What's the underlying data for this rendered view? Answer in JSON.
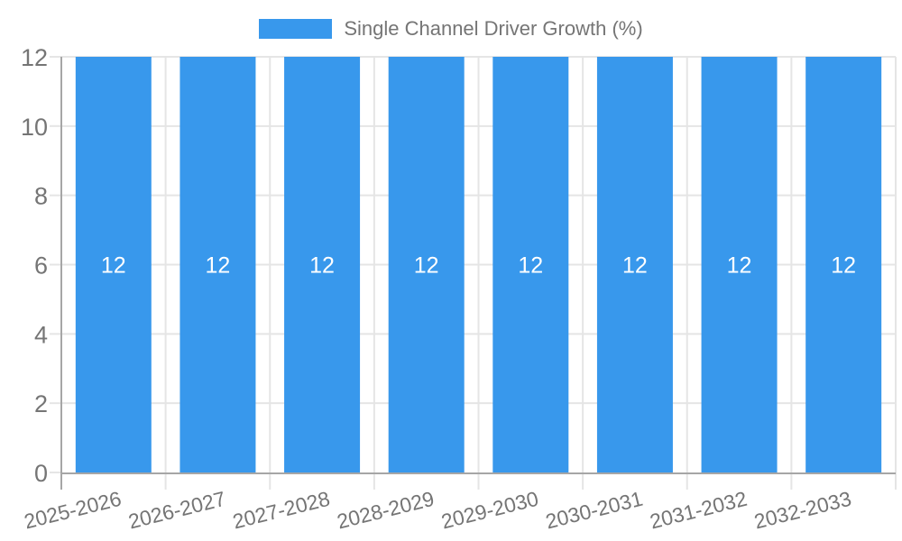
{
  "legend": {
    "label": "Single Channel Driver Growth (%)"
  },
  "chart_data": {
    "type": "bar",
    "title": "Single Channel Driver Growth (%)",
    "categories": [
      "2025-2026",
      "2026-2027",
      "2027-2028",
      "2028-2029",
      "2029-2030",
      "2030-2031",
      "2031-2032",
      "2032-2033"
    ],
    "values": [
      12,
      12,
      12,
      12,
      12,
      12,
      12,
      12
    ],
    "bar_value_labels": [
      "12",
      "12",
      "12",
      "12",
      "12",
      "12",
      "12",
      "12"
    ],
    "xlabel": "",
    "ylabel": "",
    "ylim": [
      0,
      12
    ],
    "yticks": [
      0,
      2,
      4,
      6,
      8,
      10,
      12
    ],
    "grid": true,
    "legend_position": "top",
    "colors": {
      "bar": "#3898ec",
      "bar_label": "#ffffff",
      "grid": "#e5e5e5",
      "axis": "#a6a6a6",
      "tick_text": "#757575",
      "background": "#ffffff"
    }
  }
}
